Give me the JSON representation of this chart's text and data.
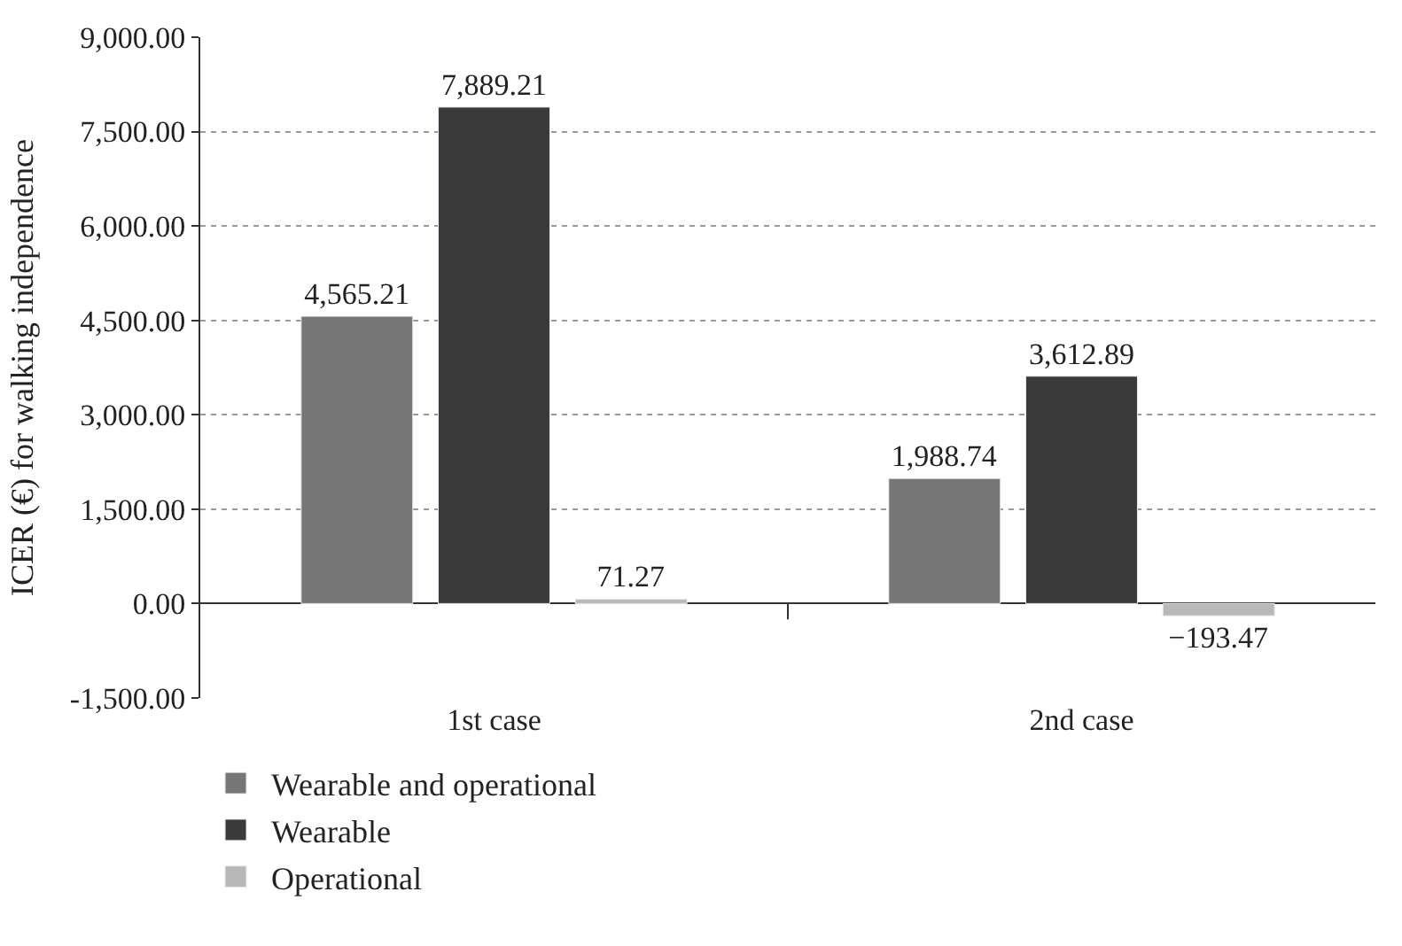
{
  "chart_data": {
    "type": "bar",
    "ylabel": "ICER (€) for walking independence",
    "categories": [
      "1st case",
      "2nd case"
    ],
    "series": [
      {
        "name": "Wearable and operational",
        "color": "#767676",
        "values": [
          4565.21,
          1988.74
        ],
        "value_labels": [
          "4,565.21",
          "1,988.74"
        ]
      },
      {
        "name": "Wearable",
        "color": "#3a3a3a",
        "values": [
          7889.21,
          3612.89
        ],
        "value_labels": [
          "7,889.21",
          "3,612.89"
        ]
      },
      {
        "name": "Operational",
        "color": "#b8b8b8",
        "values": [
          71.27,
          -193.47
        ],
        "value_labels": [
          "71.27",
          "−193.47"
        ]
      }
    ],
    "ylim": [
      -1500,
      9000
    ],
    "yticks": [
      {
        "value": -1500,
        "label": "-1,500.00"
      },
      {
        "value": 0,
        "label": "0.00"
      },
      {
        "value": 1500,
        "label": "1,500.00"
      },
      {
        "value": 3000,
        "label": "3,000.00"
      },
      {
        "value": 4500,
        "label": "4,500.00"
      },
      {
        "value": 6000,
        "label": "6,000.00"
      },
      {
        "value": 7500,
        "label": "7,500.00"
      },
      {
        "value": 9000,
        "label": "9,000.00"
      }
    ],
    "grid": "y",
    "legend": "bottom left"
  }
}
